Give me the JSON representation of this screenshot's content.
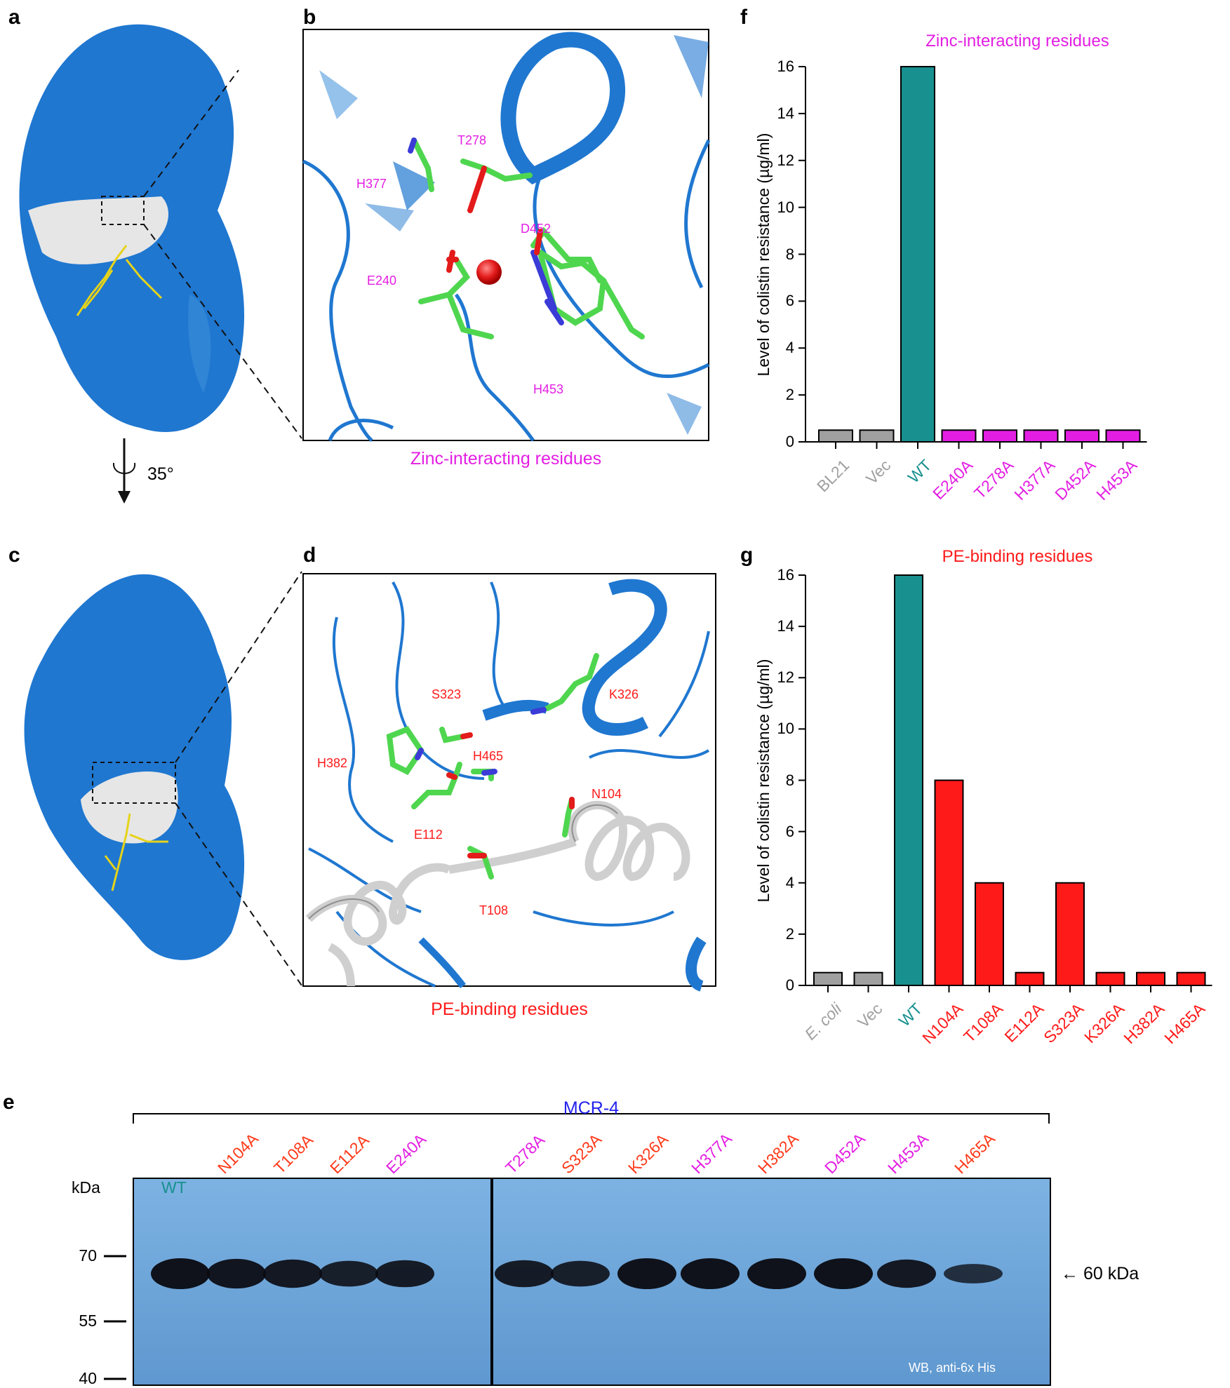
{
  "panel_labels": {
    "a": "a",
    "b": "b",
    "c": "c",
    "d": "d",
    "e": "e",
    "f": "f",
    "g": "g"
  },
  "rotation": "35°",
  "colors": {
    "protein": "#1f77d0",
    "surface_light": "#e6e6e6",
    "carbon": "#4fd64f",
    "oxygen": "#e31b1b",
    "nitrogen": "#3b3bd8",
    "zinc": "#e31b1b",
    "wt": "#18908f",
    "zinc_res": "#e31ee3",
    "pe_res": "#ff1a1a",
    "control": "#a0a0a0",
    "blot": "#6fa6d8",
    "mcr": "#2222ee"
  },
  "panel_b": {
    "caption": "Zinc-interacting residues",
    "residues": [
      "T278",
      "H377",
      "D452",
      "E240",
      "H453"
    ]
  },
  "panel_d": {
    "caption": "PE-binding residues",
    "residues": [
      "S323",
      "K326",
      "H382",
      "H465",
      "N104",
      "E112",
      "T108"
    ]
  },
  "panel_e": {
    "title": "MCR-4",
    "kda_label": "kDa",
    "markers": [
      "70",
      "55",
      "40"
    ],
    "lanes": [
      "WT",
      "N104A",
      "T108A",
      "E112A",
      "E240A",
      "T278A",
      "S323A",
      "K326A",
      "H377A",
      "H382A",
      "D452A",
      "H453A",
      "H465A"
    ],
    "lane_colors": [
      "wt",
      "pe",
      "pe",
      "pe",
      "zinc",
      "zinc",
      "pe",
      "pe",
      "zinc",
      "pe",
      "zinc",
      "zinc",
      "pe"
    ],
    "band_intensity": [
      1.0,
      0.95,
      0.9,
      0.8,
      0.85,
      0.85,
      0.8,
      1.0,
      1.0,
      1.0,
      1.0,
      0.9,
      0.55
    ],
    "arrow_label": "← 60 kDa",
    "footer": "WB, anti-6x His"
  },
  "chart_data": [
    {
      "type": "bar",
      "panel": "f",
      "title": "Zinc-interacting residues",
      "ylabel": "Level of colistin resistance (µg/ml)",
      "xlabel": "",
      "categories": [
        "BL21",
        "Vec",
        "WT",
        "E240A",
        "T278A",
        "H377A",
        "D452A",
        "H453A"
      ],
      "values": [
        0.5,
        0.5,
        16,
        0.5,
        0.5,
        0.5,
        0.5,
        0.5
      ],
      "bar_colors": [
        "#a0a0a0",
        "#a0a0a0",
        "#18908f",
        "#e31ee3",
        "#e31ee3",
        "#e31ee3",
        "#e31ee3",
        "#e31ee3"
      ],
      "ylim": [
        0,
        16
      ],
      "yticks": [
        0,
        2,
        4,
        6,
        8,
        10,
        12,
        14,
        16
      ],
      "grid": false
    },
    {
      "type": "bar",
      "panel": "g",
      "title": "PE-binding residues",
      "ylabel": "Level of colistin resistance (µg/ml)",
      "xlabel": "",
      "categories": [
        "E. coli",
        "Vec",
        "WT",
        "N104A",
        "T108A",
        "E112A",
        "S323A",
        "K326A",
        "H382A",
        "H465A"
      ],
      "values": [
        0.5,
        0.5,
        16,
        8,
        4,
        0.5,
        4,
        0.5,
        0.5,
        0.5
      ],
      "bar_colors": [
        "#a0a0a0",
        "#a0a0a0",
        "#18908f",
        "#ff1a1a",
        "#ff1a1a",
        "#ff1a1a",
        "#ff1a1a",
        "#ff1a1a",
        "#ff1a1a",
        "#ff1a1a"
      ],
      "ylim": [
        0,
        16
      ],
      "yticks": [
        0,
        2,
        4,
        6,
        8,
        10,
        12,
        14,
        16
      ],
      "grid": false
    }
  ]
}
